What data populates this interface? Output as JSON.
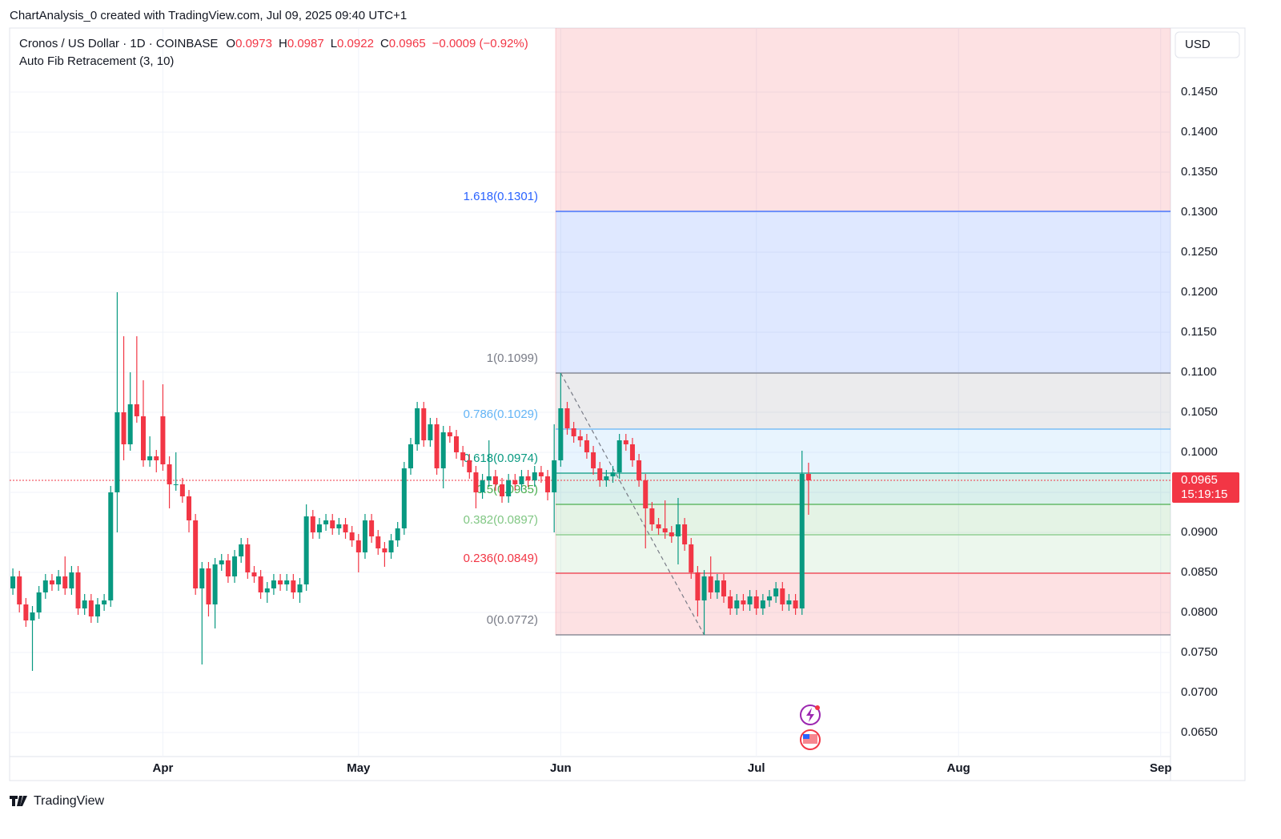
{
  "header": "ChartAnalysis_0 created with TradingView.com, Jul 09, 2025 09:40 UTC+1",
  "footer": "TradingView",
  "chart_data": {
    "type": "candlestick",
    "symbol": "Cronos / US Dollar · 1D · COINBASE",
    "ohlc_letters": [
      "O",
      "H",
      "L",
      "C"
    ],
    "change": "−0.0009 (−0.92%)",
    "indicator": "Auto Fib Retracement (3, 10)",
    "currency": "USD",
    "countdown": "15:19:15",
    "up_color": "#089981",
    "down_color": "#f23645",
    "xlim": [
      -0.5,
      177.5
    ],
    "xticks": [
      {
        "value": 23,
        "label": "Apr"
      },
      {
        "value": 53,
        "label": "May"
      },
      {
        "value": 84,
        "label": "Jun"
      },
      {
        "value": 114,
        "label": "Jul"
      },
      {
        "value": 145,
        "label": "Aug"
      },
      {
        "value": 176,
        "label": "Sep"
      }
    ],
    "ylim": [
      0.062,
      0.153
    ],
    "yticks": [
      {
        "value": 0.065,
        "label": "0.0650"
      },
      {
        "value": 0.07,
        "label": "0.0700"
      },
      {
        "value": 0.075,
        "label": "0.0750"
      },
      {
        "value": 0.08,
        "label": "0.0800"
      },
      {
        "value": 0.085,
        "label": "0.0850"
      },
      {
        "value": 0.09,
        "label": "0.0900"
      },
      {
        "value": 0.095,
        "label": "0.0950"
      },
      {
        "value": 0.1,
        "label": "0.1000"
      },
      {
        "value": 0.105,
        "label": "0.1050"
      },
      {
        "value": 0.11,
        "label": "0.1100"
      },
      {
        "value": 0.115,
        "label": "0.1150"
      },
      {
        "value": 0.12,
        "label": "0.1200"
      },
      {
        "value": 0.125,
        "label": "0.1250"
      },
      {
        "value": 0.13,
        "label": "0.1300"
      },
      {
        "value": 0.135,
        "label": "0.1350"
      },
      {
        "value": 0.14,
        "label": "0.1400"
      },
      {
        "value": 0.145,
        "label": "0.1450"
      }
    ],
    "grid": true,
    "fib_levels": [
      {
        "label": "0(0.0772)",
        "value": 0.0772,
        "color": "#787b86"
      },
      {
        "label": "0.236(0.0849)",
        "value": 0.0849,
        "color": "#f23645"
      },
      {
        "label": "0.382(0.0897)",
        "value": 0.0897,
        "color": "#81c784"
      },
      {
        "label": "0.5(0.0935)",
        "value": 0.0935,
        "color": "#4caf50"
      },
      {
        "label": "0.618(0.0974)",
        "value": 0.0974,
        "color": "#089981"
      },
      {
        "label": "0.786(0.1029)",
        "value": 0.1029,
        "color": "#64b5f6"
      },
      {
        "label": "1(0.1099)",
        "value": 0.1099,
        "color": "#787b86"
      },
      {
        "label": "1.618(0.1301)",
        "value": 0.1301,
        "color": "#2962ff"
      }
    ],
    "ohlc": [
      [
        0.083,
        0.0855,
        0.0822,
        0.0845
      ],
      [
        0.0845,
        0.0852,
        0.08,
        0.081
      ],
      [
        0.081,
        0.0818,
        0.0782,
        0.079
      ],
      [
        0.079,
        0.0808,
        0.0727,
        0.08
      ],
      [
        0.08,
        0.0833,
        0.0792,
        0.0825
      ],
      [
        0.0825,
        0.0848,
        0.0817,
        0.084
      ],
      [
        0.084,
        0.0848,
        0.0827,
        0.0835
      ],
      [
        0.0835,
        0.0853,
        0.0827,
        0.0845
      ],
      [
        0.0845,
        0.087,
        0.0822,
        0.083
      ],
      [
        0.083,
        0.0858,
        0.0822,
        0.085
      ],
      [
        0.085,
        0.0858,
        0.0797,
        0.0805
      ],
      [
        0.0805,
        0.0823,
        0.0797,
        0.0815
      ],
      [
        0.0815,
        0.0823,
        0.0787,
        0.0795
      ],
      [
        0.0795,
        0.0818,
        0.0787,
        0.081
      ],
      [
        0.081,
        0.0823,
        0.0802,
        0.0815
      ],
      [
        0.0815,
        0.0958,
        0.0807,
        0.095
      ],
      [
        0.095,
        0.12,
        0.09,
        0.105
      ],
      [
        0.105,
        0.1145,
        0.099,
        0.101
      ],
      [
        0.101,
        0.11,
        0.1002,
        0.106
      ],
      [
        0.106,
        0.1145,
        0.1037,
        0.1045
      ],
      [
        0.1045,
        0.109,
        0.0982,
        0.099
      ],
      [
        0.099,
        0.102,
        0.0982,
        0.0995
      ],
      [
        0.0995,
        0.1003,
        0.0975,
        0.099
      ],
      [
        0.1045,
        0.1085,
        0.0977,
        0.0985
      ],
      [
        0.0985,
        0.0995,
        0.093,
        0.096
      ],
      [
        0.096,
        0.1,
        0.0952,
        0.096
      ],
      [
        0.096,
        0.0968,
        0.0937,
        0.0945
      ],
      [
        0.0945,
        0.0953,
        0.09,
        0.0915
      ],
      [
        0.0915,
        0.0923,
        0.0822,
        0.083
      ],
      [
        0.083,
        0.0863,
        0.0735,
        0.0855
      ],
      [
        0.0855,
        0.0863,
        0.0795,
        0.081
      ],
      [
        0.081,
        0.0868,
        0.078,
        0.086
      ],
      [
        0.086,
        0.0873,
        0.0852,
        0.0865
      ],
      [
        0.0865,
        0.0873,
        0.0837,
        0.0845
      ],
      [
        0.0845,
        0.0878,
        0.0837,
        0.087
      ],
      [
        0.087,
        0.0893,
        0.0862,
        0.0885
      ],
      [
        0.0885,
        0.0893,
        0.0842,
        0.085
      ],
      [
        0.085,
        0.0858,
        0.0837,
        0.0845
      ],
      [
        0.0845,
        0.0853,
        0.0817,
        0.0825
      ],
      [
        0.0825,
        0.0838,
        0.0812,
        0.083
      ],
      [
        0.083,
        0.0848,
        0.0822,
        0.084
      ],
      [
        0.084,
        0.0848,
        0.0827,
        0.0835
      ],
      [
        0.0835,
        0.0848,
        0.0827,
        0.084
      ],
      [
        0.084,
        0.0848,
        0.0817,
        0.0825
      ],
      [
        0.0825,
        0.0843,
        0.0812,
        0.0835
      ],
      [
        0.0835,
        0.0935,
        0.0827,
        0.092
      ],
      [
        0.092,
        0.0928,
        0.0892,
        0.09
      ],
      [
        0.09,
        0.0918,
        0.0892,
        0.091
      ],
      [
        0.091,
        0.0923,
        0.0902,
        0.0915
      ],
      [
        0.0915,
        0.0923,
        0.0897,
        0.0905
      ],
      [
        0.0905,
        0.0918,
        0.0897,
        0.091
      ],
      [
        0.091,
        0.0918,
        0.0892,
        0.09
      ],
      [
        0.09,
        0.0908,
        0.0882,
        0.089
      ],
      [
        0.089,
        0.0898,
        0.085,
        0.0875
      ],
      [
        0.0875,
        0.0923,
        0.0867,
        0.0915
      ],
      [
        0.0915,
        0.0923,
        0.0887,
        0.0895
      ],
      [
        0.0895,
        0.0903,
        0.0872,
        0.088
      ],
      [
        0.088,
        0.0888,
        0.0857,
        0.0875
      ],
      [
        0.0875,
        0.0898,
        0.0867,
        0.089
      ],
      [
        0.089,
        0.0913,
        0.0882,
        0.0905
      ],
      [
        0.0905,
        0.0988,
        0.0897,
        0.098
      ],
      [
        0.098,
        0.1018,
        0.0972,
        0.101
      ],
      [
        0.101,
        0.1063,
        0.1002,
        0.1055
      ],
      [
        0.1055,
        0.1063,
        0.1007,
        0.1015
      ],
      [
        0.1015,
        0.1043,
        0.1007,
        0.1035
      ],
      [
        0.1035,
        0.1043,
        0.0972,
        0.098
      ],
      [
        0.098,
        0.1033,
        0.0955,
        0.1025
      ],
      [
        0.1025,
        0.1033,
        0.1012,
        0.102
      ],
      [
        0.102,
        0.1028,
        0.0992,
        0.1
      ],
      [
        0.1,
        0.1008,
        0.0982,
        0.099
      ],
      [
        0.099,
        0.0998,
        0.0967,
        0.0975
      ],
      [
        0.0975,
        0.0983,
        0.093,
        0.095
      ],
      [
        0.095,
        0.0973,
        0.0942,
        0.0965
      ],
      [
        0.0965,
        0.1015,
        0.0957,
        0.097
      ],
      [
        0.097,
        0.0978,
        0.0952,
        0.096
      ],
      [
        0.096,
        0.0968,
        0.0937,
        0.0945
      ],
      [
        0.0945,
        0.0973,
        0.0937,
        0.0965
      ],
      [
        0.0965,
        0.0973,
        0.0952,
        0.096
      ],
      [
        0.096,
        0.0978,
        0.0952,
        0.097
      ],
      [
        0.097,
        0.0978,
        0.0957,
        0.0965
      ],
      [
        0.0965,
        0.0983,
        0.0957,
        0.0975
      ],
      [
        0.0975,
        0.0983,
        0.0962,
        0.097
      ],
      [
        0.097,
        0.0978,
        0.094,
        0.095
      ],
      [
        0.095,
        0.1035,
        0.09,
        0.099
      ],
      [
        0.099,
        0.1099,
        0.0982,
        0.1055
      ],
      [
        0.1055,
        0.1063,
        0.1022,
        0.103
      ],
      [
        0.103,
        0.1038,
        0.1012,
        0.102
      ],
      [
        0.102,
        0.1028,
        0.1007,
        0.1015
      ],
      [
        0.1015,
        0.1023,
        0.0992,
        0.1
      ],
      [
        0.1,
        0.1008,
        0.0972,
        0.098
      ],
      [
        0.098,
        0.0988,
        0.0957,
        0.0965
      ],
      [
        0.0965,
        0.0978,
        0.0957,
        0.097
      ],
      [
        0.097,
        0.0983,
        0.0962,
        0.0975
      ],
      [
        0.0975,
        0.1023,
        0.0967,
        0.1015
      ],
      [
        0.1015,
        0.1023,
        0.1002,
        0.101
      ],
      [
        0.101,
        0.1018,
        0.0982,
        0.099
      ],
      [
        0.099,
        0.0998,
        0.0957,
        0.0965
      ],
      [
        0.0965,
        0.0973,
        0.088,
        0.093
      ],
      [
        0.093,
        0.0938,
        0.0902,
        0.091
      ],
      [
        0.091,
        0.0918,
        0.0897,
        0.0905
      ],
      [
        0.0905,
        0.094,
        0.0892,
        0.09
      ],
      [
        0.09,
        0.0908,
        0.0887,
        0.0895
      ],
      [
        0.0895,
        0.0943,
        0.086,
        0.091
      ],
      [
        0.091,
        0.0918,
        0.0877,
        0.0885
      ],
      [
        0.0885,
        0.0893,
        0.0842,
        0.085
      ],
      [
        0.085,
        0.0858,
        0.0795,
        0.0815
      ],
      [
        0.0815,
        0.0853,
        0.0772,
        0.0845
      ],
      [
        0.0845,
        0.087,
        0.0817,
        0.0825
      ],
      [
        0.0825,
        0.0848,
        0.0817,
        0.084
      ],
      [
        0.084,
        0.0848,
        0.0812,
        0.082
      ],
      [
        0.082,
        0.0828,
        0.0797,
        0.0805
      ],
      [
        0.0805,
        0.0823,
        0.0797,
        0.0815
      ],
      [
        0.0815,
        0.0823,
        0.0802,
        0.081
      ],
      [
        0.081,
        0.0828,
        0.0802,
        0.082
      ],
      [
        0.082,
        0.0828,
        0.0797,
        0.0805
      ],
      [
        0.0805,
        0.0823,
        0.0797,
        0.0815
      ],
      [
        0.0815,
        0.0828,
        0.0807,
        0.082
      ],
      [
        0.082,
        0.0838,
        0.0812,
        0.083
      ],
      [
        0.083,
        0.0838,
        0.0802,
        0.081
      ],
      [
        0.081,
        0.0823,
        0.0802,
        0.0815
      ],
      [
        0.0815,
        0.0823,
        0.0797,
        0.0805
      ],
      [
        0.0805,
        0.1002,
        0.0797,
        0.0973
      ],
      [
        0.0973,
        0.0987,
        0.0922,
        0.0965
      ]
    ]
  }
}
